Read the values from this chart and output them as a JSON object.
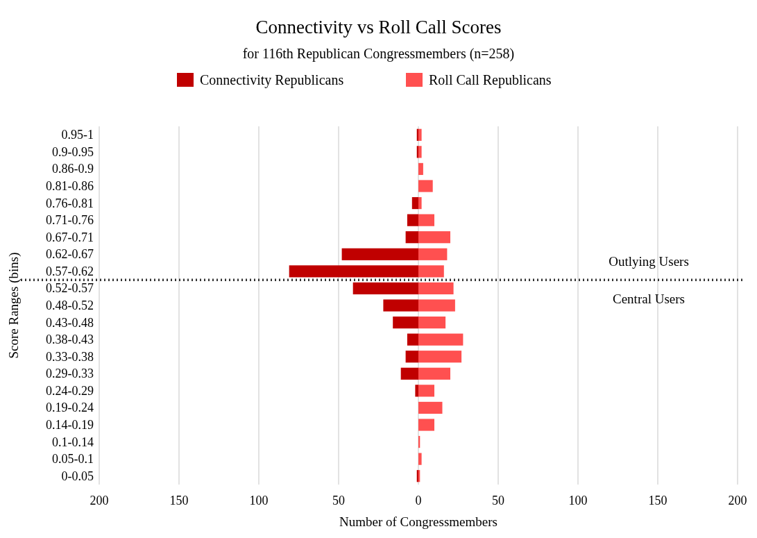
{
  "chart_data": {
    "type": "bar",
    "orientation": "horizontal",
    "stacked": true,
    "title": "Connectivity vs Roll Call Scores",
    "subtitle": "for 116th Republican Congressmembers (n=258)",
    "xlabel": "Number of Congressmembers",
    "ylabel": "Score Ranges (bins)",
    "categories": [
      "0.95-1",
      "0.9-0.95",
      "0.86-0.9",
      "0.81-0.86",
      "0.76-0.81",
      "0.71-0.76",
      "0.67-0.71",
      "0.62-0.67",
      "0.57-0.62",
      "0.52-0.57",
      "0.48-0.52",
      "0.43-0.48",
      "0.38-0.43",
      "0.33-0.38",
      "0.29-0.33",
      "0.24-0.29",
      "0.19-0.24",
      "0.14-0.19",
      "0.1-0.14",
      "0.05-0.1",
      "0-0.05"
    ],
    "series": [
      {
        "name": "Connectivity Republicans",
        "color": "#c00000",
        "values": [
          -1,
          -1,
          0,
          0,
          -4,
          -7,
          -8,
          -48,
          -81,
          -41,
          -22,
          -16,
          -7,
          -8,
          -11,
          -2,
          0,
          0,
          0,
          0,
          -1
        ]
      },
      {
        "name": "Roll Call Republicans",
        "color": "#ff5050",
        "values": [
          2,
          2,
          3,
          9,
          2,
          10,
          20,
          18,
          16,
          22,
          23,
          17,
          28,
          27,
          20,
          10,
          15,
          10,
          1,
          2,
          1
        ]
      }
    ],
    "xlim": [
      -200,
      200
    ],
    "xticks": [
      {
        "value": -200,
        "label": "200"
      },
      {
        "value": -150,
        "label": "150"
      },
      {
        "value": -100,
        "label": "100"
      },
      {
        "value": -50,
        "label": "50"
      },
      0,
      50,
      100,
      150,
      200
    ],
    "grid": "x",
    "legend": "top",
    "ref_lines": [
      {
        "axis": "y",
        "value": "0.57-0.62",
        "line_style": "dotted",
        "color": "#333333"
      }
    ],
    "annotations": [
      "Outlying Users",
      "Central Users"
    ]
  }
}
